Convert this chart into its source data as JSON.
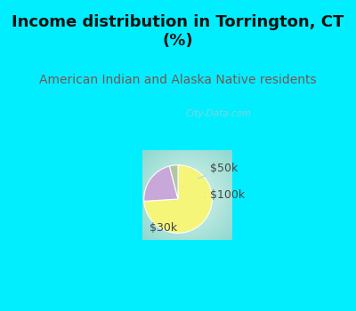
{
  "title": "Income distribution in Torrington, CT\n(%)",
  "subtitle": "American Indian and Alaska Native residents",
  "slices": [
    {
      "label": "$30k",
      "value": 74,
      "color": "#f5f57a"
    },
    {
      "label": "$50k",
      "value": 22,
      "color": "#c8a8d8"
    },
    {
      "label": "$100k",
      "value": 4,
      "color": "#b0c8a0"
    }
  ],
  "start_angle": 90,
  "title_color": "#111111",
  "title_fontsize": 13,
  "subtitle_color": "#7a5555",
  "subtitle_fontsize": 10,
  "bg_color_top": "#00eeff",
  "watermark": "City-Data.com",
  "watermark_color": "#aacccc",
  "label_color": "#444444",
  "label_fontsize": 9,
  "line_color": "#aaddcc"
}
